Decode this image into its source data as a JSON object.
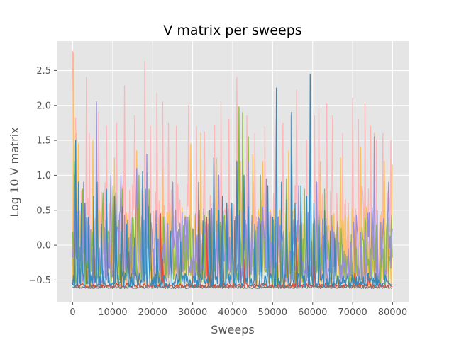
{
  "chart_data": {
    "type": "line",
    "title": "V matrix per sweeps",
    "xlabel": "Sweeps",
    "ylabel": "Log 10 V matrix",
    "xlim": [
      -4000,
      84000
    ],
    "ylim": [
      -0.82,
      2.92
    ],
    "xticks": [
      0,
      10000,
      20000,
      30000,
      40000,
      50000,
      60000,
      70000,
      80000
    ],
    "yticks": [
      -0.5,
      0.0,
      0.5,
      1.0,
      1.5,
      2.0,
      2.5
    ],
    "ytick_labels": [
      "−0.5",
      "0.0",
      "0.5",
      "1.0",
      "1.5",
      "2.0",
      "2.5"
    ],
    "grid": true,
    "style": "ggplot",
    "series": [
      {
        "color": "#FFB5B8",
        "baseline": [
          -0.62,
          0.9
        ],
        "peaks": [
          [
            0,
            2.78
          ],
          [
            700,
            1.82
          ],
          [
            1400,
            1.45
          ],
          [
            3500,
            2.4
          ],
          [
            4200,
            1.6
          ],
          [
            6500,
            1.9
          ],
          [
            8500,
            1.7
          ],
          [
            11000,
            1.75
          ],
          [
            13000,
            2.28
          ],
          [
            15500,
            1.85
          ],
          [
            18000,
            2.63
          ],
          [
            19500,
            1.7
          ],
          [
            21000,
            2.18
          ],
          [
            22500,
            2.05
          ],
          [
            24000,
            1.75
          ],
          [
            26000,
            1.7
          ],
          [
            29000,
            2.0
          ],
          [
            31000,
            1.7
          ],
          [
            33000,
            1.62
          ],
          [
            35500,
            1.72
          ],
          [
            37000,
            2.05
          ],
          [
            39000,
            1.8
          ],
          [
            41000,
            2.4
          ],
          [
            43500,
            1.85
          ],
          [
            45500,
            1.6
          ],
          [
            48000,
            1.7
          ],
          [
            50500,
            1.8
          ],
          [
            52500,
            1.75
          ],
          [
            54500,
            1.85
          ],
          [
            56000,
            2.22
          ],
          [
            58500,
            1.5
          ],
          [
            60500,
            1.85
          ],
          [
            61500,
            2.0
          ],
          [
            63500,
            2.02
          ],
          [
            65000,
            1.85
          ],
          [
            67500,
            1.6
          ],
          [
            70000,
            2.1
          ],
          [
            71500,
            1.8
          ],
          [
            73000,
            2.02
          ],
          [
            74500,
            1.7
          ],
          [
            76000,
            1.5
          ],
          [
            77500,
            1.6
          ],
          [
            79500,
            1.5
          ]
        ]
      },
      {
        "color": "#FBC15E",
        "baseline": [
          -0.62,
          0.55
        ],
        "peaks": [
          [
            200,
            2.75
          ],
          [
            900,
            1.6
          ],
          [
            1500,
            1.45
          ],
          [
            5000,
            1.5
          ],
          [
            10500,
            1.25
          ],
          [
            16000,
            1.35
          ],
          [
            22500,
            1.1
          ],
          [
            29500,
            1.45
          ],
          [
            32000,
            1.6
          ],
          [
            36000,
            1.25
          ],
          [
            42000,
            1.2
          ],
          [
            45000,
            1.3
          ],
          [
            47500,
            1.2
          ],
          [
            54000,
            1.35
          ],
          [
            62000,
            1.2
          ],
          [
            67000,
            1.25
          ],
          [
            72000,
            1.4
          ],
          [
            75500,
            1.6
          ],
          [
            78000,
            1.2
          ],
          [
            80000,
            1.15
          ]
        ]
      },
      {
        "color": "#8EBA42",
        "baseline": [
          -0.6,
          0.45
        ],
        "peaks": [
          [
            400,
            1.2
          ],
          [
            2600,
            0.8
          ],
          [
            7500,
            0.75
          ],
          [
            10000,
            0.85
          ],
          [
            12500,
            0.8
          ],
          [
            16500,
            1.0
          ],
          [
            19000,
            0.8
          ],
          [
            41500,
            1.98
          ],
          [
            42500,
            1.9
          ],
          [
            44000,
            1.55
          ],
          [
            47000,
            1.0
          ],
          [
            53500,
            0.95
          ],
          [
            58000,
            0.8
          ],
          [
            63000,
            0.8
          ]
        ]
      },
      {
        "color": "#988ED5",
        "baseline": [
          -0.55,
          0.55
        ],
        "peaks": [
          [
            500,
            1.0
          ],
          [
            2700,
            0.9
          ],
          [
            6000,
            2.05
          ],
          [
            9500,
            1.0
          ],
          [
            12000,
            1.0
          ],
          [
            16000,
            1.1
          ],
          [
            18500,
            1.3
          ],
          [
            25000,
            0.9
          ],
          [
            36500,
            1.0
          ],
          [
            44000,
            1.2
          ],
          [
            48500,
            0.95
          ],
          [
            56500,
            0.85
          ],
          [
            61000,
            0.9
          ],
          [
            75500,
            1.55
          ],
          [
            79000,
            0.9
          ]
        ]
      },
      {
        "color": "#E24A33",
        "baseline": [
          -0.6,
          -0.55
        ],
        "peaks": [
          [
            22000,
            0.45
          ],
          [
            22500,
            -0.2
          ],
          [
            33500,
            0.4
          ],
          [
            34000,
            -0.25
          ],
          [
            43000,
            -0.2
          ],
          [
            56000,
            0.1
          ],
          [
            59000,
            -0.3
          ],
          [
            60500,
            -0.3
          ],
          [
            70500,
            -0.4
          ],
          [
            74000,
            -0.4
          ]
        ]
      },
      {
        "color": "#777777",
        "baseline": [
          -0.62,
          -0.58
        ],
        "peaks": [
          [
            10500,
            0.7
          ],
          [
            12500,
            0.55
          ],
          [
            14000,
            -0.1
          ],
          [
            19500,
            0.45
          ],
          [
            31500,
            0.9
          ],
          [
            34500,
            0.5
          ],
          [
            37000,
            0.3
          ],
          [
            40500,
            0.35
          ]
        ]
      },
      {
        "color": "#348ABD",
        "baseline": [
          -0.6,
          -0.4
        ],
        "peaks": [
          [
            700,
            1.5
          ],
          [
            1500,
            0.9
          ],
          [
            2200,
            0.6
          ],
          [
            3000,
            0.6
          ],
          [
            4000,
            0.4
          ],
          [
            5200,
            0.7
          ],
          [
            6200,
            0.9
          ],
          [
            7200,
            0.3
          ],
          [
            8500,
            0.8
          ],
          [
            10800,
            0.75
          ],
          [
            12000,
            0.2
          ],
          [
            13500,
            0.3
          ],
          [
            15500,
            0.1
          ],
          [
            17500,
            1.05
          ],
          [
            18200,
            0.8
          ],
          [
            18900,
            0.55
          ],
          [
            21000,
            0.3
          ],
          [
            24500,
            0.2
          ],
          [
            27000,
            0.05
          ],
          [
            32500,
            0.35
          ],
          [
            34200,
            0.5
          ],
          [
            35200,
            1.25
          ],
          [
            36500,
            0.5
          ],
          [
            37500,
            0.7
          ],
          [
            38500,
            0.6
          ],
          [
            39800,
            0.6
          ],
          [
            41000,
            1.2
          ],
          [
            41800,
            0.5
          ],
          [
            42800,
            1.0
          ],
          [
            44000,
            0.55
          ],
          [
            45500,
            0.3
          ],
          [
            47000,
            0.3
          ],
          [
            48800,
            0.85
          ],
          [
            50000,
            0.4
          ],
          [
            51000,
            2.25
          ],
          [
            52200,
            0.9
          ],
          [
            53500,
            0.65
          ],
          [
            54800,
            1.9
          ],
          [
            55600,
            0.6
          ],
          [
            57000,
            0.85
          ],
          [
            58500,
            0.7
          ],
          [
            59400,
            2.45
          ],
          [
            60300,
            0.6
          ],
          [
            61500,
            0.4
          ],
          [
            63000,
            0.5
          ],
          [
            64500,
            0.2
          ],
          [
            65500,
            0.1
          ]
        ]
      }
    ]
  }
}
